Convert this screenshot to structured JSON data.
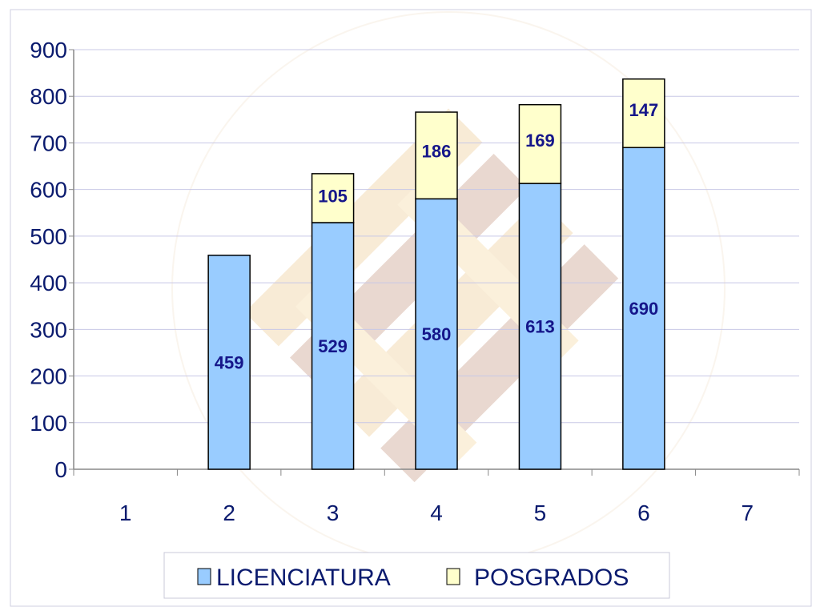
{
  "chart_data": {
    "type": "bar",
    "stacked": true,
    "categories": [
      "1",
      "2",
      "3",
      "4",
      "5",
      "6",
      "7"
    ],
    "series": [
      {
        "name": "LICENCIATURA",
        "values": [
          null,
          459,
          529,
          580,
          613,
          690,
          null
        ],
        "color": "#99ccff"
      },
      {
        "name": "POSGRADOS",
        "values": [
          null,
          null,
          105,
          186,
          169,
          147,
          null
        ],
        "color": "#ffffcc"
      }
    ],
    "y_ticks": [
      "0",
      "100",
      "200",
      "300",
      "400",
      "500",
      "600",
      "700",
      "800",
      "900"
    ],
    "ylim": [
      0,
      900
    ],
    "grid": true,
    "legend_position": "bottom",
    "title": "",
    "xlabel": "",
    "ylabel": ""
  },
  "colors": {
    "text": "#0a1a6e",
    "data_label": "#15168a",
    "grid": "#c8c8e6",
    "bar_stroke": "#000000"
  }
}
